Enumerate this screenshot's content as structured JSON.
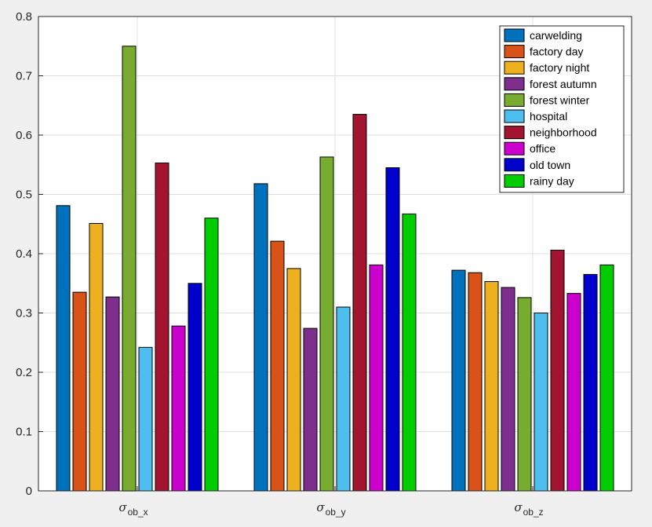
{
  "chart_data": {
    "type": "bar",
    "title": "",
    "xlabel": "",
    "ylabel": "",
    "ylim": [
      0,
      0.8
    ],
    "yticks": [
      "0",
      "0.1",
      "0.2",
      "0.3",
      "0.4",
      "0.5",
      "0.6",
      "0.7",
      "0.8"
    ],
    "grid": true,
    "legend_position": "top-right",
    "categories": [
      {
        "symbol": "σ",
        "subscript": "ob_x"
      },
      {
        "symbol": "σ",
        "subscript": "ob_y"
      },
      {
        "symbol": "σ",
        "subscript": "ob_z"
      }
    ],
    "series": [
      {
        "name": "carwelding",
        "color": "#0072BD",
        "values": [
          0.481,
          0.518,
          0.372
        ]
      },
      {
        "name": "factory day",
        "color": "#D95319",
        "values": [
          0.335,
          0.421,
          0.368
        ]
      },
      {
        "name": "factory night",
        "color": "#EDB120",
        "values": [
          0.451,
          0.375,
          0.353
        ]
      },
      {
        "name": "forest autumn",
        "color": "#7E2F8E",
        "values": [
          0.327,
          0.274,
          0.343
        ]
      },
      {
        "name": "forest winter",
        "color": "#77AC30",
        "values": [
          0.75,
          0.563,
          0.326
        ]
      },
      {
        "name": "hospital",
        "color": "#4DBEEE",
        "values": [
          0.242,
          0.31,
          0.3
        ]
      },
      {
        "name": "neighborhood",
        "color": "#A2142F",
        "values": [
          0.553,
          0.635,
          0.406
        ]
      },
      {
        "name": "office",
        "color": "#CC00CC",
        "values": [
          0.278,
          0.381,
          0.333
        ]
      },
      {
        "name": "old town",
        "color": "#0000CC",
        "values": [
          0.35,
          0.545,
          0.365
        ]
      },
      {
        "name": "rainy day",
        "color": "#00CC00",
        "values": [
          0.46,
          0.467,
          0.381
        ]
      }
    ]
  }
}
